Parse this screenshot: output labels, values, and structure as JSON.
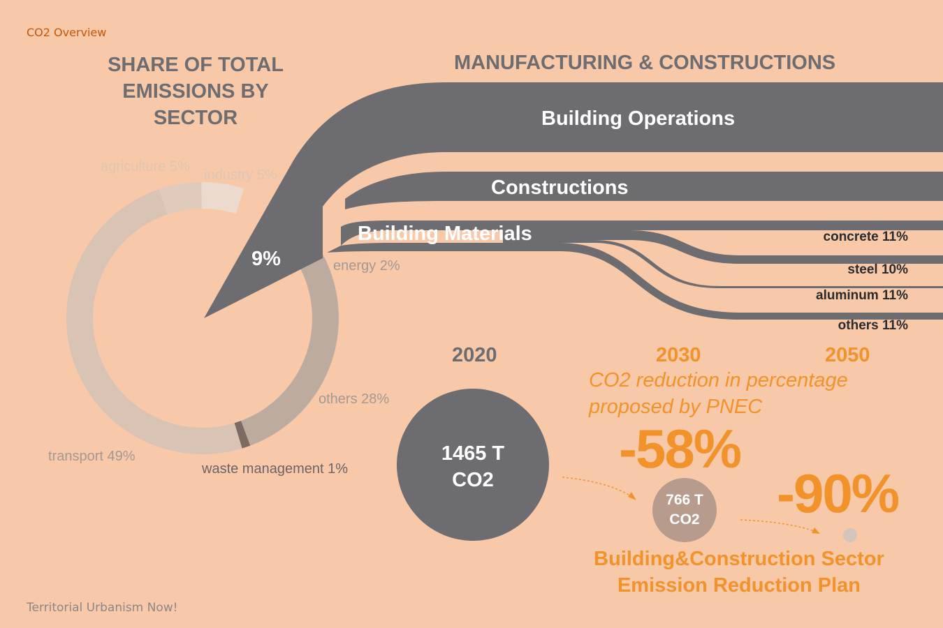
{
  "header": "CO2 Overview",
  "footer": "Territorial Urbanism Now!",
  "colors": {
    "background": "#f7c9a9",
    "dark_gray": "#6d6c70",
    "orange": "#f1922b",
    "transport": "#d9c3b4",
    "agriculture": "#e0cabb",
    "industry": "#ebdacd",
    "energy": "#a6928a",
    "others": "#beaba0",
    "waste": "#7b6b63"
  },
  "chart_data": [
    {
      "type": "pie",
      "title": "SHARE OF TOTAL EMISSIONS BY SECTOR",
      "slices": [
        {
          "label": "agriculture 5%",
          "value": 5
        },
        {
          "label": "industry 5%",
          "value": 5
        },
        {
          "label": "9%",
          "value": 9
        },
        {
          "label": "energy 2%",
          "value": 2
        },
        {
          "label": "others 28%",
          "value": 28
        },
        {
          "label": "waste management 1%",
          "value": 1
        },
        {
          "label": "transport 49%",
          "value": 49
        }
      ]
    },
    {
      "type": "sankey",
      "title": "MANUFACTURING & CONSTRUCTIONS",
      "flows": [
        {
          "label": "Building Operations"
        },
        {
          "label": "Constructions"
        },
        {
          "label": "Building Materials",
          "breakdown": [
            {
              "label": "concrete 11%",
              "value": 11
            },
            {
              "label": "steel 10%",
              "value": 10
            },
            {
              "label": "aluminum 11%",
              "value": 11
            },
            {
              "label": "others 11%",
              "value": 11
            }
          ]
        }
      ]
    },
    {
      "type": "bubble",
      "title": "Building&Construction Sector Emission Reduction Plan",
      "note": "CO2 reduction in percentage proposed by PNEC",
      "points": [
        {
          "year": "2020",
          "value_label": "1465 T CO2",
          "reduction": ""
        },
        {
          "year": "2030",
          "value_label": "766 T CO2",
          "reduction": "-58%"
        },
        {
          "year": "2050",
          "value_label": "",
          "reduction": "-90%"
        }
      ]
    }
  ],
  "text": {
    "title_left": "SHARE OF TOTAL EMISSIONS BY SECTOR",
    "title_right": "MANUFACTURING & CONSTRUCTIONS",
    "lbl_agriculture": "agriculture 5%",
    "lbl_industry": "industry 5%",
    "lbl_nine": "9%",
    "lbl_energy": "energy 2%",
    "lbl_others": "others 28%",
    "lbl_waste": "waste management 1%",
    "lbl_transport": "transport 49%",
    "band_operations": "Building Operations",
    "band_constructions": "Constructions",
    "band_materials": "Building Materials",
    "sub_concrete": "concrete 11%",
    "sub_steel": "steel 10%",
    "sub_aluminum": "aluminum 11%",
    "sub_others": "others 11%",
    "year_2020": "2020",
    "year_2030": "2030",
    "year_2050": "2050",
    "reduction_note": "CO2 reduction in percentage proposed by PNEC",
    "pct_2030": "-58%",
    "pct_2050": "-90%",
    "circle_2020_line1": "1465 T",
    "circle_2020_line2": "CO2",
    "circle_2030_line1": "766 T",
    "circle_2030_line2": "CO2",
    "plan_title": "Building&Construction Sector Emission Reduction Plan"
  }
}
